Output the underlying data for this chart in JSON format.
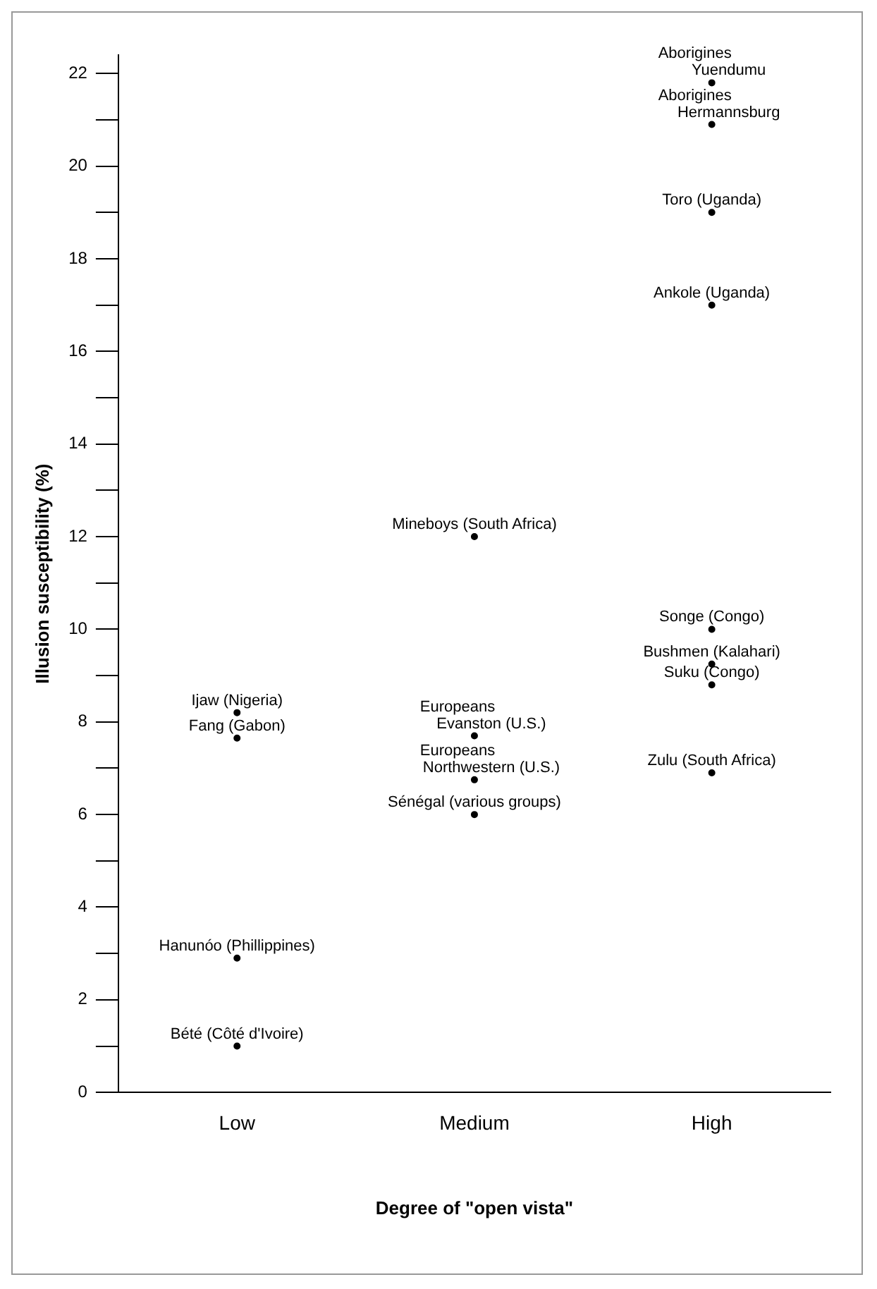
{
  "chart_data": {
    "type": "scatter",
    "xlabel": "Degree of \"open vista\"",
    "ylabel": "Illusion susceptibility (%)",
    "categories": [
      "Low",
      "Medium",
      "High"
    ],
    "series": [
      {
        "type": "scatter",
        "color": "#000000",
        "x": [
          "High",
          "High",
          "High",
          "High",
          "Medium",
          "High",
          "High",
          "High",
          "High",
          "Low",
          "Low",
          "Medium",
          "Medium",
          "Medium",
          "Low",
          "Low"
        ],
        "values": [
          21.8,
          20.9,
          19.0,
          17.0,
          12.0,
          10.0,
          9.25,
          8.8,
          6.9,
          8.2,
          7.65,
          7.7,
          6.75,
          6.0,
          2.9,
          1.0
        ],
        "value_labels": [
          "Aborigines\nYuendumu",
          "Aborigines\nHermannsburg",
          "Toro (Uganda)",
          "Ankole (Uganda)",
          "Mineboys (South Africa)",
          "Songe (Congo)",
          "Bushmen (Kalahari)",
          "Suku (Congo)",
          "Zulu (South Africa)",
          "Ijaw (Nigeria)",
          "Fang (Gabon)",
          "Europeans\nEvanston (U.S.)",
          "Europeans\nNorthwestern (U.S.)",
          "Sénégal (various groups)",
          "Hanunóo (Phillippines)",
          "Bété (Côté d'Ivoire)"
        ]
      }
    ],
    "ylim": [
      0,
      22.4
    ],
    "yticks": [
      0,
      {
        "value": 1,
        "label": null
      },
      2,
      {
        "value": 3,
        "label": null
      },
      4,
      {
        "value": 5,
        "label": null
      },
      6,
      {
        "value": 7,
        "label": null
      },
      8,
      {
        "value": 9,
        "label": null
      },
      10,
      {
        "value": 11,
        "label": null
      },
      12,
      {
        "value": 13,
        "label": null
      },
      14,
      {
        "value": 15,
        "label": null
      },
      16,
      {
        "value": 17,
        "label": null
      },
      18,
      {
        "value": 19,
        "label": null
      },
      20,
      {
        "value": 21,
        "label": null
      },
      22
    ],
    "marker": "circle",
    "grid": false,
    "legend": false
  }
}
